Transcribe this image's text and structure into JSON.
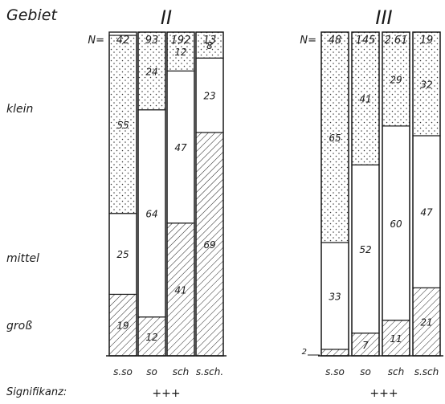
{
  "header": {
    "region_label": "Gebiet",
    "significance_label": "Signifikanz:"
  },
  "row_labels": [
    "klein",
    "mittel",
    "groß"
  ],
  "colors": {
    "ink": "#1a1a1a",
    "paper": "#ffffff"
  },
  "chart_data": [
    {
      "type": "bar",
      "stacked": true,
      "normalized_percent": true,
      "title": "II",
      "categories": [
        "s.so",
        "so",
        "sch",
        "s.sch."
      ],
      "n_prefix": "N=",
      "n_values": [
        42,
        93,
        192,
        13
      ],
      "series": [
        {
          "name": "groß",
          "values": [
            19,
            12,
            41,
            69
          ],
          "pattern": "hatched"
        },
        {
          "name": "mittel",
          "values": [
            25,
            64,
            47,
            23
          ],
          "pattern": "plain"
        },
        {
          "name": "klein",
          "values": [
            55,
            24,
            12,
            8
          ],
          "pattern": "dotted"
        }
      ],
      "significance": "+++",
      "ylim": [
        0,
        100
      ]
    },
    {
      "type": "bar",
      "stacked": true,
      "normalized_percent": true,
      "title": "III",
      "categories": [
        "s.so",
        "so",
        "sch",
        "s.sch"
      ],
      "n_prefix": "N=",
      "n_values": [
        48,
        145,
        "2.61",
        19
      ],
      "series": [
        {
          "name": "groß",
          "values": [
            2,
            7,
            11,
            21
          ],
          "pattern": "hatched"
        },
        {
          "name": "mittel",
          "values": [
            33,
            52,
            60,
            47
          ],
          "pattern": "plain"
        },
        {
          "name": "klein",
          "values": [
            65,
            41,
            29,
            32
          ],
          "pattern": "dotted"
        }
      ],
      "significance": "+++",
      "ylim": [
        0,
        100
      ]
    }
  ]
}
